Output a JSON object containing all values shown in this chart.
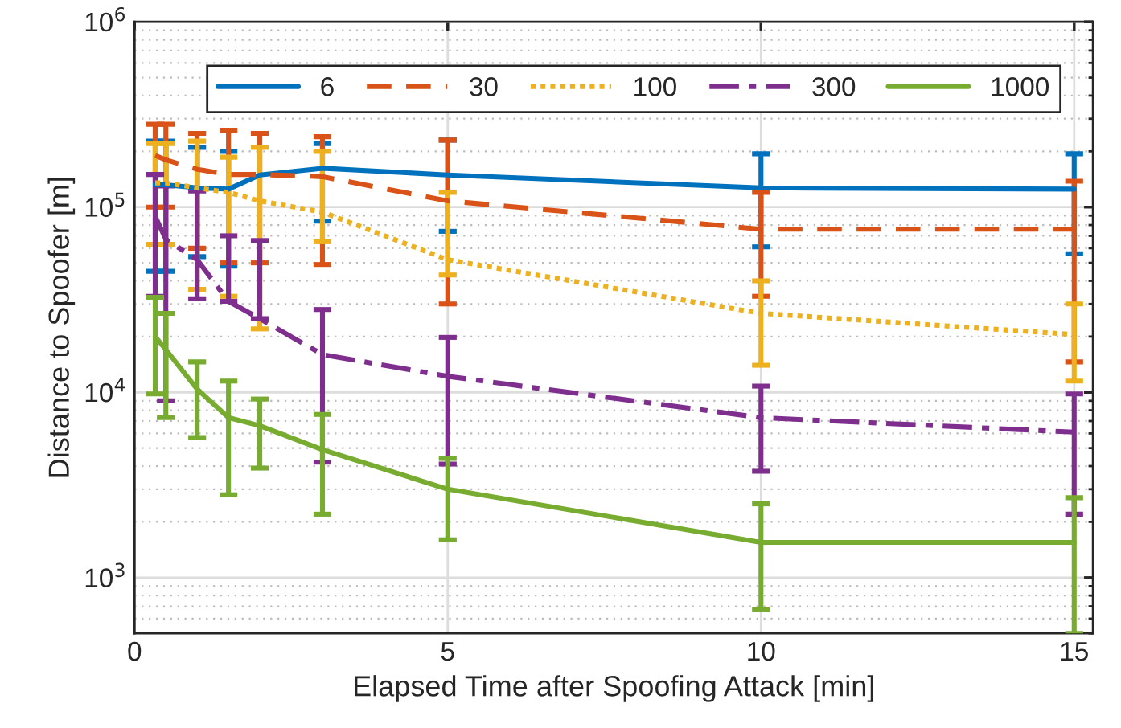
{
  "chart_data": {
    "type": "line",
    "xlabel": "Elapsed Time after Spoofing Attack [min]",
    "ylabel": "Distance to Spoofer [m]",
    "x": [
      0.33,
      0.5,
      1,
      1.5,
      2,
      3,
      5,
      10,
      15
    ],
    "xlim": [
      0,
      15.3
    ],
    "xticks": [
      0,
      5,
      10,
      15
    ],
    "log": "y",
    "ylim": [
      500,
      1000000
    ],
    "yticks": [
      {
        "value": 1000,
        "label": "10$^{3}$"
      },
      {
        "value": 10000,
        "label": "10$^{4}$"
      },
      {
        "value": 100000,
        "label": "10$^{5}$"
      },
      {
        "value": 1000000,
        "label": "10$^{6}$"
      }
    ],
    "grid": true,
    "legend": "top right",
    "series": [
      {
        "name": "6",
        "color": "#0072bd",
        "line_style": "solid",
        "values": [
          132000,
          132000,
          127000,
          125000,
          149000,
          162000,
          149000,
          127000,
          125000
        ],
        "errors": [
          [
            45000,
            227000
          ],
          [
            45000,
            227000
          ],
          [
            54000,
            210000
          ],
          [
            48000,
            200000
          ],
          null,
          [
            84000,
            220000
          ],
          [
            74000,
            230000
          ],
          [
            61000,
            194000
          ],
          [
            56000,
            194000
          ]
        ]
      },
      {
        "name": "30",
        "color": "#d95319",
        "line_style": "dashed",
        "values": [
          190000,
          180000,
          160000,
          150000,
          150000,
          146000,
          108000,
          76000,
          76000
        ],
        "errors": [
          [
            100000,
            280000
          ],
          [
            100000,
            280000
          ],
          [
            60000,
            250000
          ],
          [
            50000,
            260000
          ],
          [
            50000,
            250000
          ],
          [
            49000,
            240000
          ],
          [
            30000,
            230000
          ],
          [
            33000,
            120000
          ],
          [
            14600,
            138000
          ]
        ]
      },
      {
        "name": "100",
        "color": "#edb120",
        "line_style": "dotted",
        "values": [
          135000,
          135000,
          127000,
          120000,
          108000,
          94000,
          52000,
          26700,
          20500
        ],
        "errors": [
          [
            63000,
            220000
          ],
          [
            63000,
            220000
          ],
          [
            36000,
            227000
          ],
          [
            33000,
            186000
          ],
          [
            22000,
            210000
          ],
          [
            65000,
            200000
          ],
          [
            43000,
            120000
          ],
          [
            14000,
            40000
          ],
          [
            11500,
            30000
          ]
        ]
      },
      {
        "name": "300",
        "color": "#7e2f8e",
        "line_style": "dashdot",
        "values": [
          89000,
          67000,
          52000,
          31000,
          25000,
          16000,
          12200,
          7300,
          6100
        ],
        "errors": [
          [
            33000,
            150000
          ],
          [
            9000,
            130000
          ],
          [
            32000,
            122000
          ],
          [
            31000,
            70000
          ],
          [
            25000,
            66000
          ],
          [
            4200,
            28000
          ],
          [
            4100,
            19800
          ],
          [
            3750,
            10800
          ],
          [
            2200,
            9800
          ]
        ]
      },
      {
        "name": "1000",
        "color": "#77ac30",
        "line_style": "solid",
        "values": [
          20000,
          17000,
          10400,
          7300,
          6600,
          4900,
          3000,
          1550,
          1550
        ],
        "errors": [
          [
            9800,
            32600
          ],
          [
            7300,
            26700
          ],
          [
            5700,
            14600
          ],
          [
            2800,
            11500
          ],
          [
            3900,
            9200
          ],
          [
            2200,
            7600
          ],
          [
            1600,
            4400
          ],
          [
            670,
            2500
          ],
          [
            500,
            2700
          ]
        ]
      }
    ]
  }
}
